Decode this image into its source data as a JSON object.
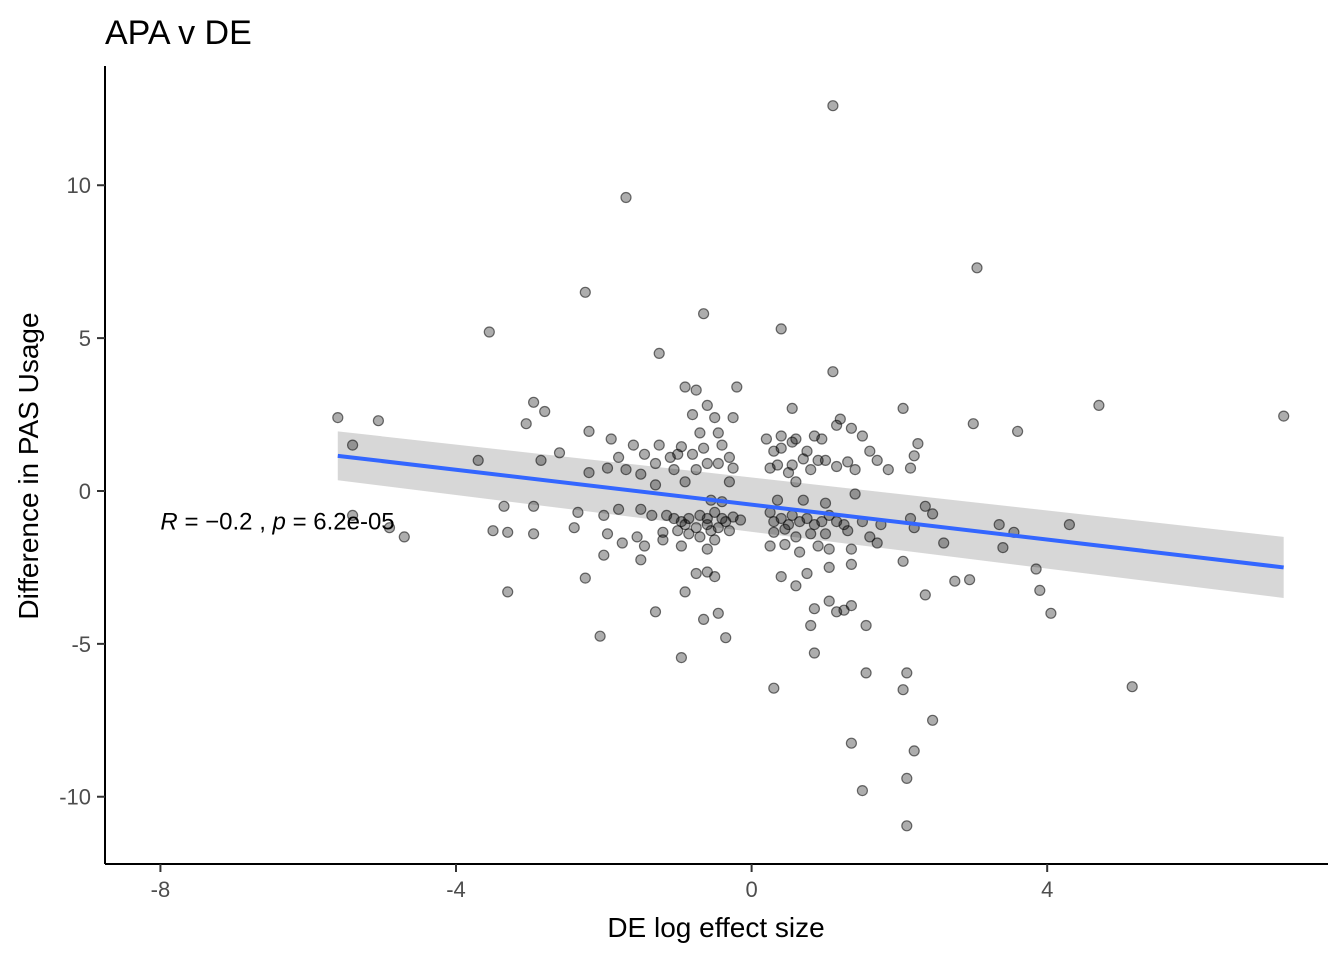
{
  "chart_data": {
    "type": "scatter",
    "title": "APA v DE",
    "xlabel": "DE log effect size",
    "ylabel": "Difference in PAS Usage",
    "xlim": [
      -8.75,
      7.8
    ],
    "ylim": [
      -12.2,
      13.9
    ],
    "x_ticks": [
      -8,
      -4,
      0,
      4
    ],
    "x_tick_labels": [
      "-8",
      "-4",
      "0",
      "4"
    ],
    "y_ticks": [
      -10,
      -5,
      0,
      5,
      10
    ],
    "y_tick_labels": [
      "-10",
      "-5",
      "0",
      "5",
      "10"
    ],
    "grid": false,
    "annotation": {
      "R_label": "R",
      "R_value": "−0.2",
      "p_label": "p",
      "p_value": "6.2e-05",
      "x": -8,
      "y": -1
    },
    "colors": {
      "points": "#000000",
      "fit_line": "#3366ff",
      "confidence_band": "#d3d3d3",
      "axis": "#000000"
    },
    "fit": {
      "x": [
        -5.6,
        7.2
      ],
      "y": [
        1.15,
        -2.5
      ],
      "ci_lower": [
        0.35,
        -3.5
      ],
      "ci_upper": [
        1.95,
        -1.5
      ]
    },
    "points": [
      [
        1.1,
        12.6
      ],
      [
        -1.7,
        9.6
      ],
      [
        3.05,
        7.3
      ],
      [
        -2.25,
        6.5
      ],
      [
        -0.65,
        5.8
      ],
      [
        0.4,
        5.3
      ],
      [
        -3.55,
        5.2
      ],
      [
        -1.25,
        4.5
      ],
      [
        1.1,
        3.9
      ],
      [
        -0.2,
        3.4
      ],
      [
        -0.9,
        3.4
      ],
      [
        -0.75,
        3.3
      ],
      [
        -2.95,
        2.9
      ],
      [
        -0.6,
        2.8
      ],
      [
        4.7,
        2.8
      ],
      [
        -2.8,
        2.6
      ],
      [
        2.05,
        2.7
      ],
      [
        0.55,
        2.7
      ],
      [
        -0.8,
        2.5
      ],
      [
        -0.5,
        2.4
      ],
      [
        -0.25,
        2.4
      ],
      [
        1.2,
        2.35
      ],
      [
        7.2,
        2.45
      ],
      [
        -5.6,
        2.4
      ],
      [
        -5.05,
        2.3
      ],
      [
        -3.05,
        2.2
      ],
      [
        3.0,
        2.2
      ],
      [
        1.15,
        2.15
      ],
      [
        -2.2,
        1.95
      ],
      [
        1.35,
        2.05
      ],
      [
        3.6,
        1.95
      ],
      [
        -0.7,
        1.9
      ],
      [
        -0.45,
        1.9
      ],
      [
        0.4,
        1.8
      ],
      [
        0.85,
        1.8
      ],
      [
        1.5,
        1.8
      ],
      [
        0.95,
        1.7
      ],
      [
        0.6,
        1.7
      ],
      [
        0.2,
        1.7
      ],
      [
        -1.9,
        1.7
      ],
      [
        -1.6,
        1.5
      ],
      [
        -1.25,
        1.5
      ],
      [
        -0.95,
        1.45
      ],
      [
        0.55,
        1.6
      ],
      [
        0.4,
        1.4
      ],
      [
        2.25,
        1.55
      ],
      [
        -5.4,
        1.5
      ],
      [
        -2.6,
        1.25
      ],
      [
        -0.8,
        1.2
      ],
      [
        -1.45,
        1.2
      ],
      [
        -1.0,
        1.2
      ],
      [
        -0.65,
        1.4
      ],
      [
        -0.4,
        1.5
      ],
      [
        0.3,
        1.3
      ],
      [
        0.75,
        1.3
      ],
      [
        1.6,
        1.3
      ],
      [
        2.2,
        1.15
      ],
      [
        -1.8,
        1.1
      ],
      [
        -1.1,
        1.1
      ],
      [
        -0.3,
        1.1
      ],
      [
        0.7,
        1.05
      ],
      [
        1.0,
        1.0
      ],
      [
        0.9,
        1.0
      ],
      [
        1.3,
        0.95
      ],
      [
        1.7,
        1.0
      ],
      [
        -3.7,
        1.0
      ],
      [
        -2.85,
        1.0
      ],
      [
        -1.3,
        0.9
      ],
      [
        -0.6,
        0.9
      ],
      [
        -0.45,
        0.9
      ],
      [
        0.35,
        0.85
      ],
      [
        0.55,
        0.85
      ],
      [
        1.15,
        0.8
      ],
      [
        -1.95,
        0.75
      ],
      [
        -1.7,
        0.7
      ],
      [
        -1.05,
        0.7
      ],
      [
        0.25,
        0.75
      ],
      [
        0.8,
        0.7
      ],
      [
        1.85,
        0.7
      ],
      [
        2.15,
        0.75
      ],
      [
        -2.2,
        0.6
      ],
      [
        -1.5,
        0.55
      ],
      [
        -0.75,
        0.7
      ],
      [
        -0.25,
        0.75
      ],
      [
        0.5,
        0.6
      ],
      [
        1.4,
        0.7
      ],
      [
        -1.3,
        0.2
      ],
      [
        -0.9,
        0.3
      ],
      [
        -0.3,
        0.3
      ],
      [
        0.6,
        0.3
      ],
      [
        1.4,
        -0.1
      ],
      [
        -0.55,
        -0.3
      ],
      [
        -0.4,
        -0.35
      ],
      [
        0.35,
        -0.3
      ],
      [
        0.7,
        -0.3
      ],
      [
        1.0,
        -0.4
      ],
      [
        2.35,
        -0.5
      ],
      [
        2.45,
        -0.75
      ],
      [
        -5.4,
        -0.8
      ],
      [
        -3.35,
        -0.5
      ],
      [
        -2.95,
        -0.5
      ],
      [
        -2.35,
        -0.7
      ],
      [
        -2.0,
        -0.8
      ],
      [
        -1.8,
        -0.6
      ],
      [
        -1.5,
        -0.6
      ],
      [
        -1.35,
        -0.8
      ],
      [
        -1.15,
        -0.8
      ],
      [
        -1.05,
        -0.9
      ],
      [
        -0.95,
        -1.0
      ],
      [
        -0.85,
        -0.9
      ],
      [
        -0.7,
        -0.8
      ],
      [
        -0.6,
        -0.9
      ],
      [
        -0.5,
        -0.7
      ],
      [
        -0.4,
        -0.9
      ],
      [
        -0.35,
        -1.0
      ],
      [
        -0.6,
        -1.1
      ],
      [
        -0.75,
        -1.2
      ],
      [
        -0.9,
        -1.1
      ],
      [
        -0.55,
        -1.3
      ],
      [
        -0.45,
        -1.2
      ],
      [
        -0.3,
        -1.3
      ],
      [
        -0.25,
        -0.85
      ],
      [
        -0.15,
        -0.95
      ],
      [
        0.25,
        -0.7
      ],
      [
        0.3,
        -1.0
      ],
      [
        0.4,
        -0.9
      ],
      [
        0.5,
        -1.1
      ],
      [
        0.55,
        -0.8
      ],
      [
        0.65,
        -1.0
      ],
      [
        0.75,
        -0.9
      ],
      [
        0.85,
        -1.1
      ],
      [
        0.95,
        -1.0
      ],
      [
        1.05,
        -0.8
      ],
      [
        1.15,
        -1.0
      ],
      [
        1.25,
        -1.1
      ],
      [
        1.5,
        -1.0
      ],
      [
        1.75,
        -1.1
      ],
      [
        2.15,
        -0.9
      ],
      [
        2.2,
        -1.2
      ],
      [
        -4.9,
        -1.2
      ],
      [
        -3.5,
        -1.3
      ],
      [
        -3.3,
        -1.35
      ],
      [
        -2.95,
        -1.4
      ],
      [
        -2.4,
        -1.2
      ],
      [
        -1.95,
        -1.4
      ],
      [
        -1.55,
        -1.5
      ],
      [
        -1.2,
        -1.35
      ],
      [
        -1.0,
        -1.3
      ],
      [
        -0.85,
        -1.4
      ],
      [
        -0.7,
        -1.5
      ],
      [
        -0.5,
        -1.6
      ],
      [
        0.3,
        -1.35
      ],
      [
        0.45,
        -1.25
      ],
      [
        0.6,
        -1.5
      ],
      [
        0.8,
        -1.4
      ],
      [
        1.0,
        -1.4
      ],
      [
        1.3,
        -1.3
      ],
      [
        1.6,
        -1.5
      ],
      [
        2.6,
        -1.7
      ],
      [
        -4.7,
        -1.5
      ],
      [
        -2.0,
        -2.1
      ],
      [
        -1.75,
        -1.7
      ],
      [
        -1.45,
        -1.8
      ],
      [
        -1.2,
        -1.6
      ],
      [
        -0.95,
        -1.8
      ],
      [
        -0.6,
        -1.9
      ],
      [
        0.25,
        -1.8
      ],
      [
        0.45,
        -1.75
      ],
      [
        0.65,
        -2.0
      ],
      [
        0.9,
        -1.8
      ],
      [
        1.05,
        -1.9
      ],
      [
        1.35,
        -1.9
      ],
      [
        1.7,
        -1.7
      ],
      [
        2.05,
        -2.3
      ],
      [
        -2.25,
        -2.85
      ],
      [
        -1.5,
        -2.25
      ],
      [
        -0.75,
        -2.7
      ],
      [
        -0.6,
        -2.65
      ],
      [
        -0.5,
        -2.8
      ],
      [
        0.4,
        -2.8
      ],
      [
        0.6,
        -3.1
      ],
      [
        0.75,
        -2.7
      ],
      [
        1.05,
        -2.5
      ],
      [
        1.35,
        -2.4
      ],
      [
        2.35,
        -3.4
      ],
      [
        2.75,
        -2.95
      ],
      [
        2.95,
        -2.9
      ],
      [
        3.85,
        -2.55
      ],
      [
        3.9,
        -3.25
      ],
      [
        4.05,
        -4.0
      ],
      [
        3.35,
        -1.1
      ],
      [
        3.55,
        -1.35
      ],
      [
        3.4,
        -1.85
      ],
      [
        4.3,
        -1.1
      ],
      [
        -3.3,
        -3.3
      ],
      [
        -1.3,
        -3.95
      ],
      [
        -0.9,
        -3.3
      ],
      [
        -0.65,
        -4.2
      ],
      [
        -0.45,
        -4.0
      ],
      [
        -0.35,
        -4.8
      ],
      [
        0.85,
        -3.85
      ],
      [
        0.8,
        -4.4
      ],
      [
        1.05,
        -3.6
      ],
      [
        1.15,
        -3.95
      ],
      [
        1.35,
        -3.75
      ],
      [
        1.25,
        -3.9
      ],
      [
        1.55,
        -4.4
      ],
      [
        -2.05,
        -4.75
      ],
      [
        -0.95,
        -5.45
      ],
      [
        0.85,
        -5.3
      ],
      [
        1.55,
        -5.95
      ],
      [
        2.1,
        -5.95
      ],
      [
        2.05,
        -6.5
      ],
      [
        0.3,
        -6.45
      ],
      [
        5.15,
        -6.4
      ],
      [
        2.45,
        -7.5
      ],
      [
        1.35,
        -8.25
      ],
      [
        2.2,
        -8.5
      ],
      [
        2.1,
        -9.4
      ],
      [
        1.5,
        -9.8
      ],
      [
        2.1,
        -10.95
      ]
    ]
  }
}
